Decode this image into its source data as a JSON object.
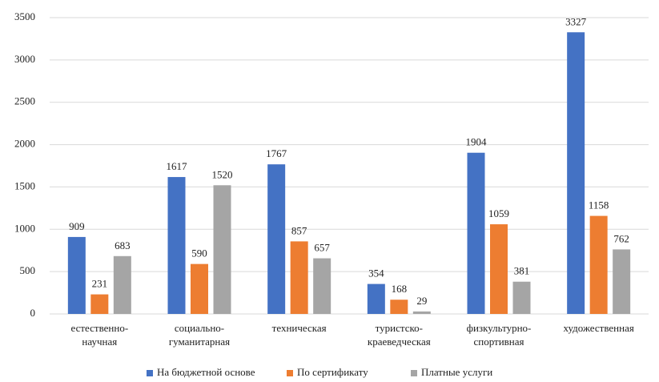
{
  "chart_data": {
    "type": "bar",
    "categories": [
      "естественно-\nнаучная",
      "социально-\nгуманитарная",
      "техническая",
      "туристско-\nкраеведческая",
      "физкультурно-\nспортивная",
      "художественная"
    ],
    "series": [
      {
        "name": "На бюджетной основе",
        "color": "#4472c4",
        "values": [
          909,
          1617,
          1767,
          354,
          1904,
          3327
        ]
      },
      {
        "name": "По сертификату",
        "color": "#ed7d31",
        "values": [
          231,
          590,
          857,
          168,
          1059,
          1158
        ]
      },
      {
        "name": "Платные услуги",
        "color": "#a5a5a5",
        "values": [
          683,
          1520,
          657,
          29,
          381,
          762
        ]
      }
    ],
    "ylim": [
      0,
      3500
    ],
    "yticks": [
      0,
      500,
      1000,
      1500,
      2000,
      2500,
      3000,
      3500
    ],
    "grid": true,
    "legend": "bottom"
  }
}
